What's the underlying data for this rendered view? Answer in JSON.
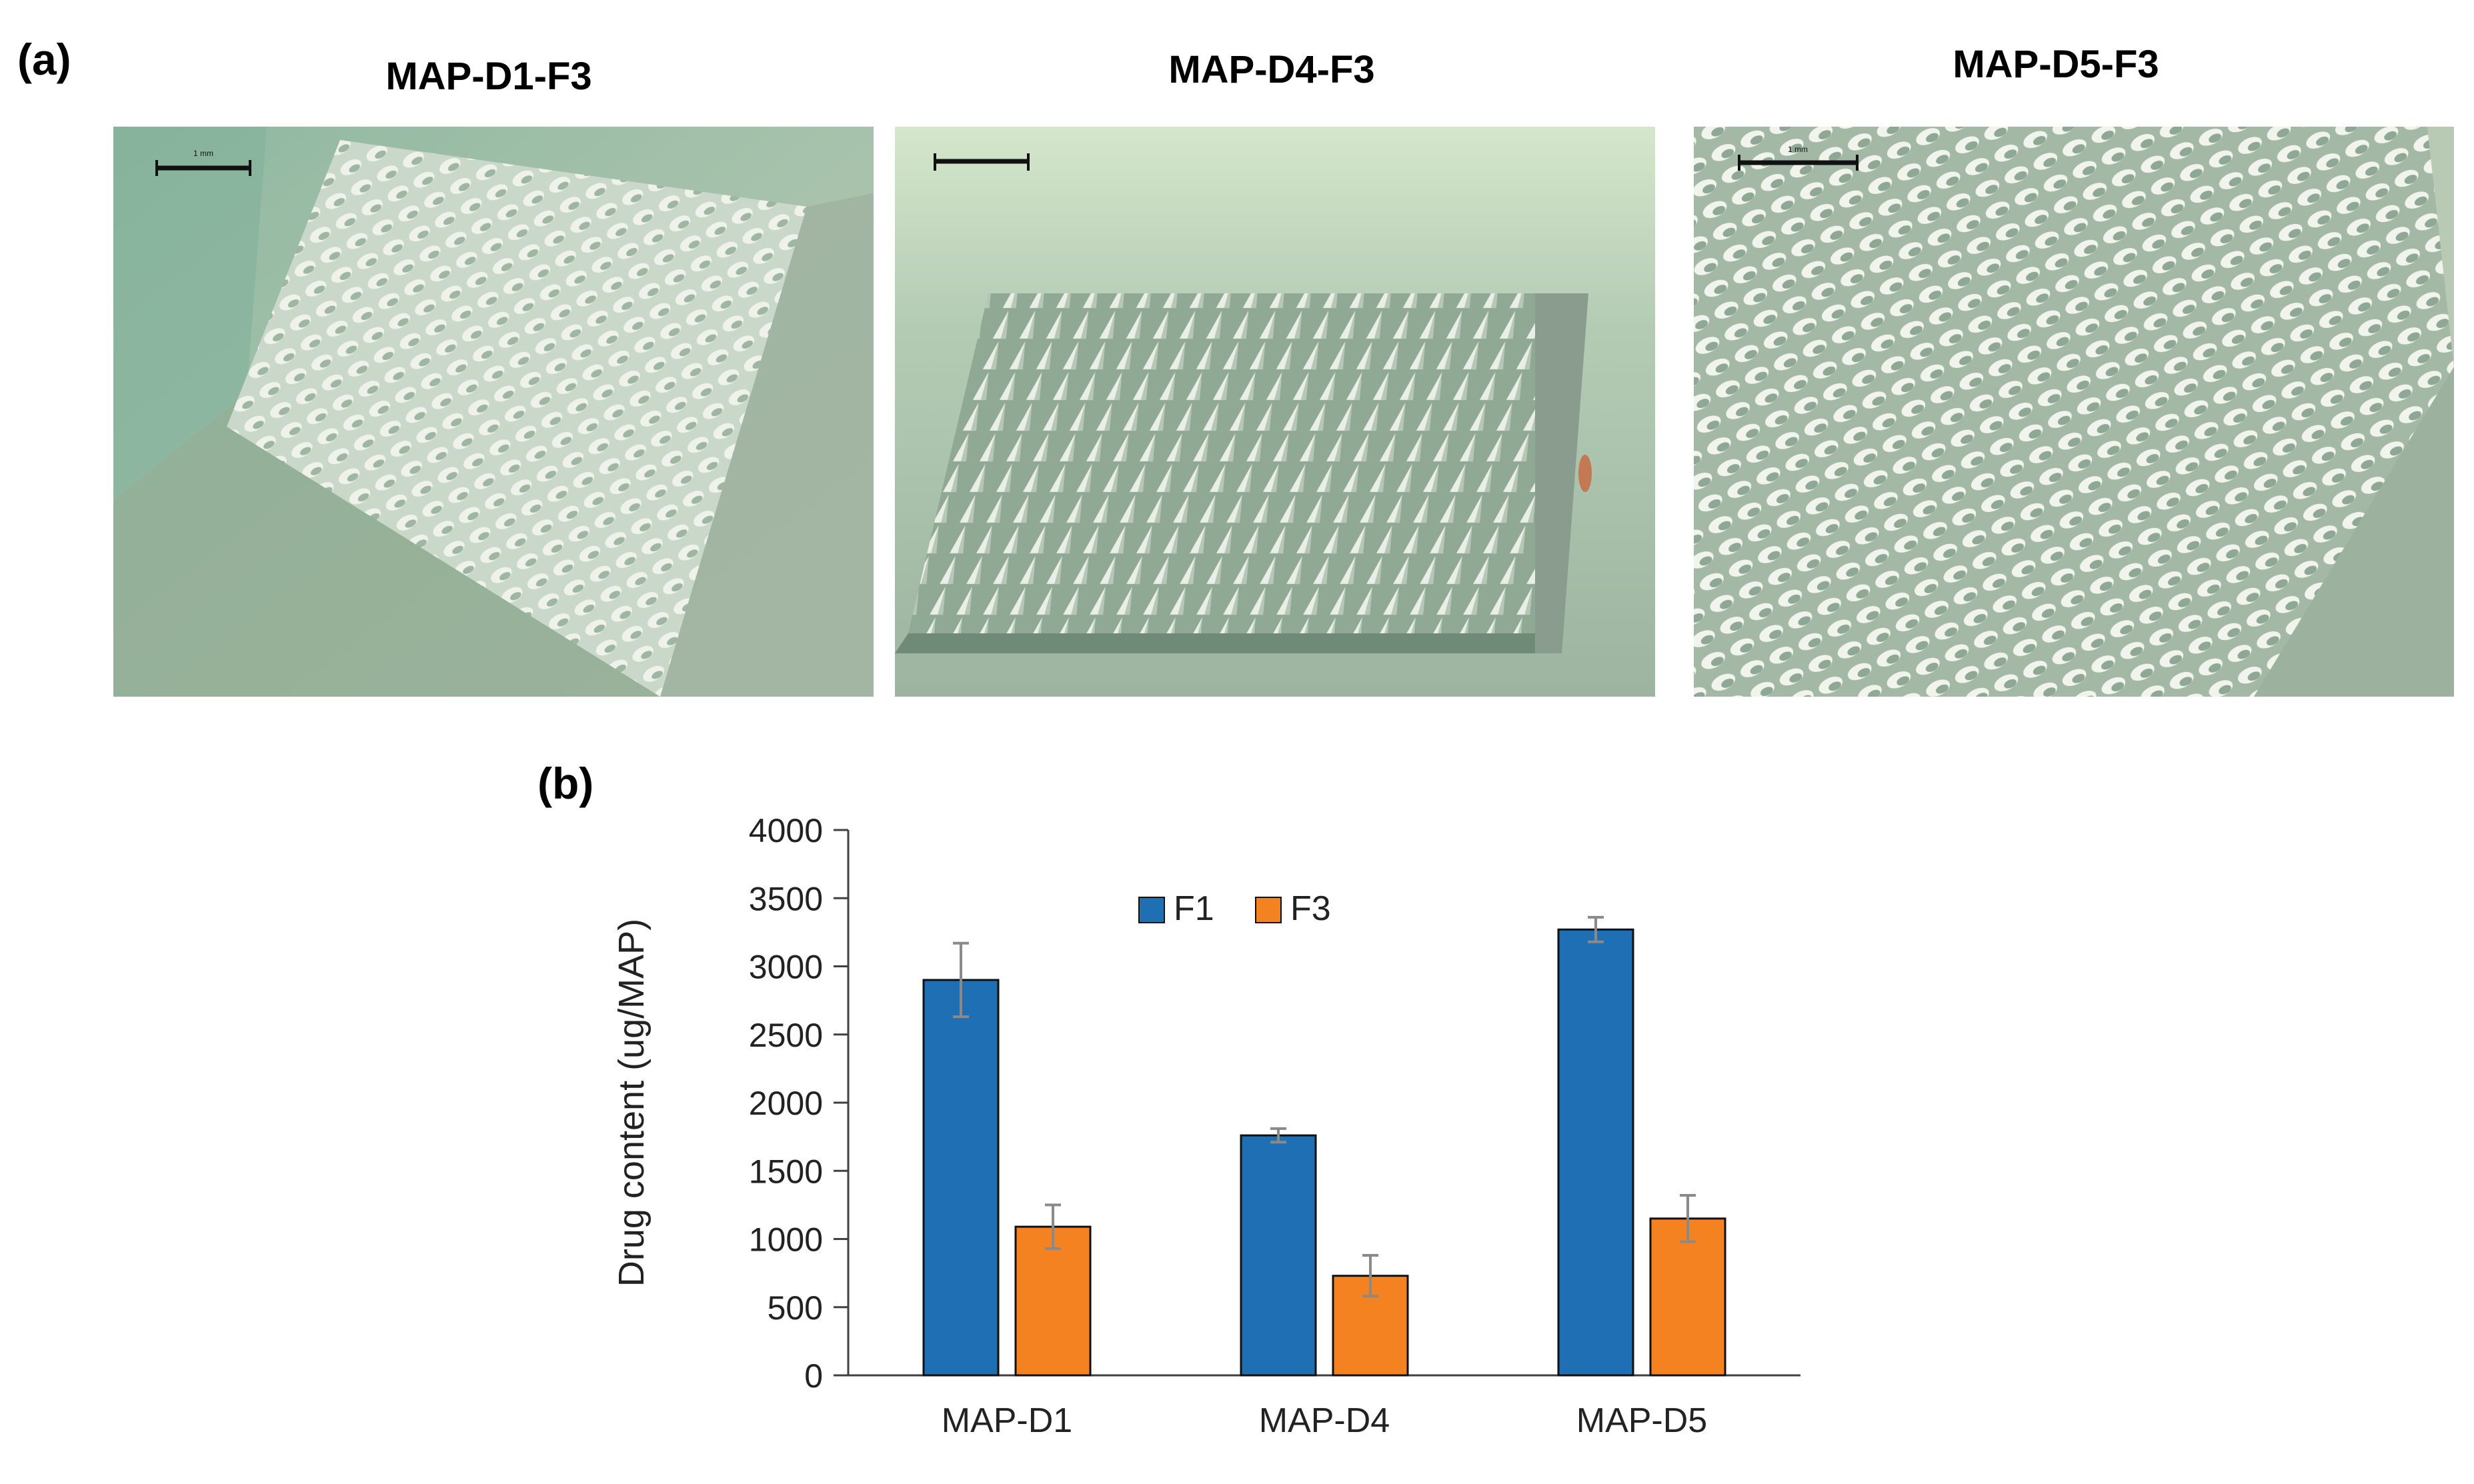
{
  "panel_a": {
    "label": "(a)",
    "images": [
      {
        "title": "MAP-D1-F3",
        "scale_label": "1 mm"
      },
      {
        "title": "MAP-D4-F3",
        "scale_label": ""
      },
      {
        "title": "MAP-D5-F3",
        "scale_label": "1 mm"
      }
    ]
  },
  "panel_b": {
    "label": "(b)"
  },
  "colors": {
    "F1": "#1f6fb4",
    "F3": "#f58220",
    "error_bar": "#8a8a8a",
    "micro_bg": "#a9c3ad",
    "needle_light": "#eef2ea",
    "needle_shadow": "#7e9b86"
  },
  "chart_data": {
    "type": "bar",
    "title": "",
    "xlabel": "",
    "ylabel": "Drug content (ug/MAP)",
    "ylim": [
      0,
      4000
    ],
    "yticks": [
      0,
      500,
      1000,
      1500,
      2000,
      2500,
      3000,
      3500,
      4000
    ],
    "categories": [
      "MAP-D1",
      "MAP-D4",
      "MAP-D5"
    ],
    "legend_position": "top-center",
    "series": [
      {
        "name": "F1",
        "values": [
          2900,
          1760,
          3270
        ],
        "errors": [
          270,
          50,
          90
        ]
      },
      {
        "name": "F3",
        "values": [
          1090,
          730,
          1150
        ],
        "errors": [
          160,
          150,
          170
        ]
      }
    ]
  }
}
